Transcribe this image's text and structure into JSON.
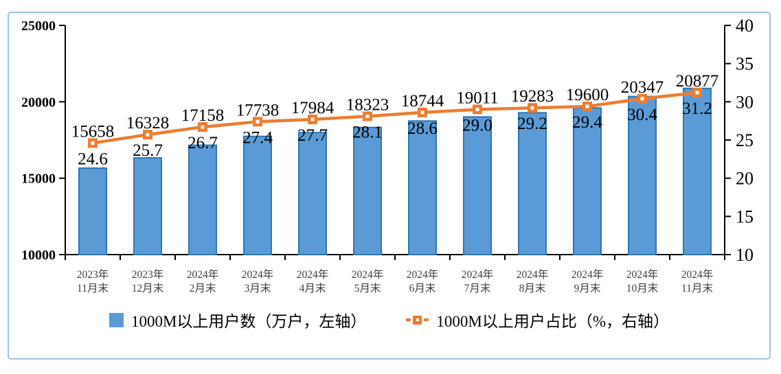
{
  "frame": {
    "border_color": "#9DC3E6",
    "background": "#FFFFFF"
  },
  "chart_data": {
    "type": "bar",
    "subtype": "bar-line-combo",
    "title": "",
    "categories": [
      {
        "top": "2023年",
        "bottom": "11月末"
      },
      {
        "top": "2023年",
        "bottom": "12月末"
      },
      {
        "top": "2024年",
        "bottom": "2月末"
      },
      {
        "top": "2024年",
        "bottom": "3月末"
      },
      {
        "top": "2024年",
        "bottom": "4月末"
      },
      {
        "top": "2024年",
        "bottom": "5月末"
      },
      {
        "top": "2024年",
        "bottom": "6月末"
      },
      {
        "top": "2024年",
        "bottom": "7月末"
      },
      {
        "top": "2024年",
        "bottom": "8月末"
      },
      {
        "top": "2024年",
        "bottom": "9月末"
      },
      {
        "top": "2024年",
        "bottom": "10月末"
      },
      {
        "top": "2024年",
        "bottom": "11月末"
      }
    ],
    "series": [
      {
        "name": "1000M以上用户数（万户，左轴）",
        "type": "bar",
        "axis": "left",
        "values": [
          15658,
          16328,
          17158,
          17738,
          17984,
          18323,
          18744,
          19011,
          19283,
          19600,
          20347,
          20877
        ],
        "fill": "#5B9BD5",
        "stroke": "#2E75B6"
      },
      {
        "name": "1000M以上用户占比（%，右轴）",
        "type": "line",
        "axis": "right",
        "values": [
          24.6,
          25.7,
          26.7,
          27.4,
          27.7,
          28.1,
          28.6,
          29.0,
          29.2,
          29.4,
          30.4,
          31.2
        ],
        "color": "#ED7D31",
        "marker": "square"
      }
    ],
    "left_axis": {
      "min": 10000,
      "max": 25000,
      "step": 5000
    },
    "right_axis": {
      "min": 10,
      "max": 40,
      "step": 5
    },
    "legend_position": "bottom",
    "grid": false,
    "axis_color": "#000000",
    "category_label_color": "#404040",
    "data_label_color": "#000000"
  },
  "legend": {
    "bar_label": "1000M以上用户数（万户，左轴）",
    "line_label": "1000M以上用户占比（%，右轴）"
  }
}
